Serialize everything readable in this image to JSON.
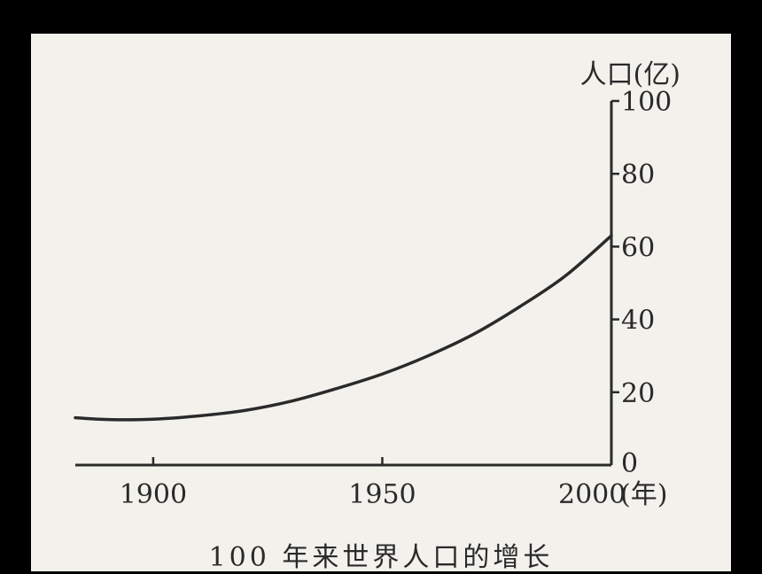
{
  "colors": {
    "background": "#000000",
    "panel": "#f3f1ec",
    "ink": "#2a2a2a"
  },
  "chart_data": {
    "type": "line",
    "title": "100 年来世界人口的增长",
    "xlabel": "(年)",
    "ylabel": "人口(亿)",
    "x_tick_labels": [
      "1900",
      "1950",
      "2000"
    ],
    "y_tick_labels": [
      "0",
      "20",
      "40",
      "60",
      "80",
      "100"
    ],
    "xlim": [
      1883,
      2000
    ],
    "ylim": [
      0,
      100
    ],
    "grid": false,
    "series": [
      {
        "x": [
          1883,
          1890,
          1900,
          1910,
          1920,
          1930,
          1940,
          1950,
          1960,
          1970,
          1980,
          1990,
          2000
        ],
        "y": [
          13,
          12.5,
          12.6,
          13.5,
          15,
          17.5,
          21,
          25,
          30,
          36,
          43.5,
          52,
          63
        ]
      }
    ]
  }
}
